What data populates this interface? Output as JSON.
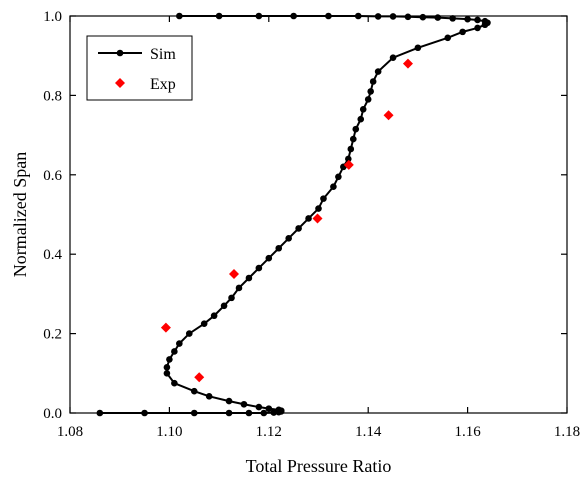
{
  "chart_data": {
    "type": "line",
    "xlabel": "Total Pressure Ratio",
    "ylabel": "Normalized Span",
    "xlim": [
      1.08,
      1.18
    ],
    "ylim": [
      0.0,
      1.0
    ],
    "xticks": [
      "1.08",
      "1.10",
      "1.12",
      "1.14",
      "1.16",
      "1.18"
    ],
    "yticks": [
      "0.0",
      "0.2",
      "0.4",
      "0.6",
      "0.8",
      "1.0"
    ],
    "legend_position": "top-left",
    "series": [
      {
        "name": "Sim",
        "style": "line-with-circles",
        "color": "#000000",
        "points": [
          [
            1.086,
            0.0
          ],
          [
            1.095,
            0.0
          ],
          [
            1.105,
            0.0
          ],
          [
            1.112,
            0.0
          ],
          [
            1.116,
            0.0
          ],
          [
            1.119,
            0.0
          ],
          [
            1.121,
            0.001
          ],
          [
            1.122,
            0.002
          ],
          [
            1.1225,
            0.004
          ],
          [
            1.1225,
            0.006
          ],
          [
            1.122,
            0.008
          ],
          [
            1.12,
            0.011
          ],
          [
            1.118,
            0.015
          ],
          [
            1.115,
            0.022
          ],
          [
            1.112,
            0.03
          ],
          [
            1.108,
            0.042
          ],
          [
            1.105,
            0.055
          ],
          [
            1.101,
            0.075
          ],
          [
            1.0995,
            0.1
          ],
          [
            1.0995,
            0.115
          ],
          [
            1.1,
            0.135
          ],
          [
            1.101,
            0.155
          ],
          [
            1.102,
            0.175
          ],
          [
            1.104,
            0.2
          ],
          [
            1.107,
            0.225
          ],
          [
            1.109,
            0.245
          ],
          [
            1.111,
            0.27
          ],
          [
            1.1125,
            0.29
          ],
          [
            1.114,
            0.315
          ],
          [
            1.116,
            0.34
          ],
          [
            1.118,
            0.365
          ],
          [
            1.12,
            0.39
          ],
          [
            1.122,
            0.415
          ],
          [
            1.124,
            0.44
          ],
          [
            1.126,
            0.465
          ],
          [
            1.128,
            0.49
          ],
          [
            1.13,
            0.515
          ],
          [
            1.131,
            0.54
          ],
          [
            1.133,
            0.57
          ],
          [
            1.134,
            0.595
          ],
          [
            1.135,
            0.62
          ],
          [
            1.136,
            0.64
          ],
          [
            1.1365,
            0.665
          ],
          [
            1.137,
            0.69
          ],
          [
            1.1375,
            0.715
          ],
          [
            1.1385,
            0.74
          ],
          [
            1.139,
            0.765
          ],
          [
            1.14,
            0.79
          ],
          [
            1.1405,
            0.81
          ],
          [
            1.141,
            0.835
          ],
          [
            1.142,
            0.86
          ],
          [
            1.145,
            0.895
          ],
          [
            1.15,
            0.92
          ],
          [
            1.156,
            0.945
          ],
          [
            1.159,
            0.96
          ],
          [
            1.162,
            0.97
          ],
          [
            1.1635,
            0.978
          ],
          [
            1.164,
            0.983
          ],
          [
            1.1635,
            0.987
          ],
          [
            1.162,
            0.99
          ],
          [
            1.16,
            0.992
          ],
          [
            1.157,
            0.994
          ],
          [
            1.154,
            0.996
          ],
          [
            1.151,
            0.997
          ],
          [
            1.148,
            0.998
          ],
          [
            1.145,
            0.999
          ],
          [
            1.142,
            0.999
          ],
          [
            1.138,
            1.0
          ],
          [
            1.132,
            1.0
          ],
          [
            1.125,
            1.0
          ],
          [
            1.118,
            1.0
          ],
          [
            1.11,
            1.0
          ],
          [
            1.102,
            1.0
          ]
        ]
      },
      {
        "name": "Exp",
        "style": "diamond-markers",
        "color": "#ff0000",
        "points": [
          [
            1.0993,
            0.215
          ],
          [
            1.106,
            0.09
          ],
          [
            1.113,
            0.35
          ],
          [
            1.1298,
            0.49
          ],
          [
            1.1361,
            0.625
          ],
          [
            1.1441,
            0.75
          ],
          [
            1.148,
            0.88
          ]
        ]
      }
    ]
  }
}
